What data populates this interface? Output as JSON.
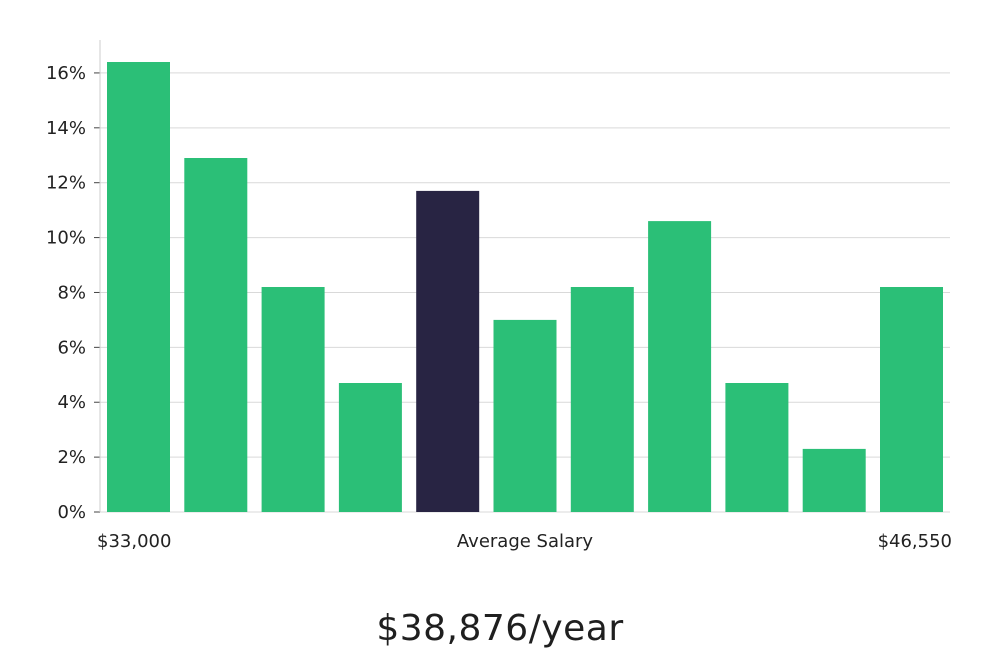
{
  "chart_data": {
    "type": "bar",
    "y_unit": "%",
    "ylim": [
      0,
      17.2
    ],
    "y_ticks": [
      0,
      2,
      4,
      6,
      8,
      10,
      12,
      14,
      16
    ],
    "grid": true,
    "values": [
      16.4,
      12.9,
      8.2,
      4.7,
      11.7,
      7.0,
      8.2,
      10.6,
      4.7,
      2.3,
      8.2
    ],
    "highlight_index": 4,
    "colors": {
      "bar": "#2bbf77",
      "highlight": "#282443",
      "grid": "#d9d9d9",
      "axis": "#cccccc"
    },
    "x_labels": {
      "left": "$33,000",
      "center": "Average Salary",
      "right": "$46,550"
    }
  },
  "average_salary": "$38,876/year"
}
